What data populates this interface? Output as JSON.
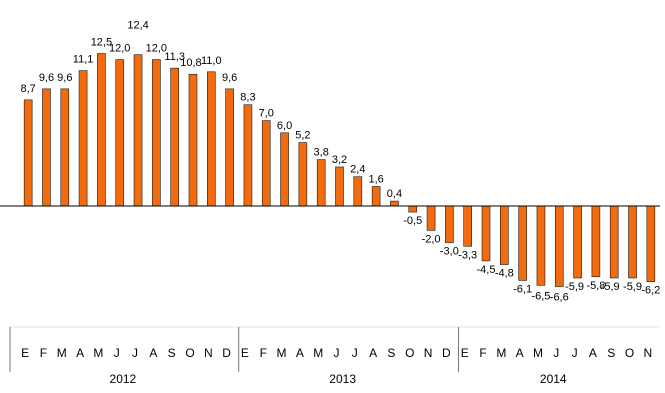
{
  "chart_data": {
    "type": "bar",
    "title": "",
    "xlabel": "",
    "ylabel": "",
    "ylim": [
      -7.5,
      13.5
    ],
    "grid": false,
    "legend": "none",
    "colors": {
      "bar_fill": "#F26B0F",
      "bar_stroke": "#1a1a1a",
      "axis": "#000000",
      "text": "#000000"
    },
    "year_labels": [
      "2012",
      "2013",
      "2014"
    ],
    "month_labels": [
      "E",
      "F",
      "M",
      "A",
      "M",
      "J",
      "J",
      "A",
      "S",
      "O",
      "N",
      "D",
      "E",
      "F",
      "M",
      "A",
      "M",
      "J",
      "J",
      "A",
      "S",
      "O",
      "N",
      "D",
      "E",
      "F",
      "M",
      "A",
      "M",
      "J",
      "J",
      "A",
      "S",
      "O",
      "N"
    ],
    "categories": [
      "E 2012",
      "F 2012",
      "M 2012",
      "A 2012",
      "M 2012",
      "J 2012",
      "J 2012",
      "A 2012",
      "S 2012",
      "O 2012",
      "N 2012",
      "D 2012",
      "E 2013",
      "F 2013",
      "M 2013",
      "A 2013",
      "M 2013",
      "J 2013",
      "J 2013",
      "A 2013",
      "S 2013",
      "O 2013",
      "N 2013",
      "D 2013",
      "E 2014",
      "F 2014",
      "M 2014",
      "A 2014",
      "M 2014",
      "J 2014",
      "J 2014",
      "A 2014",
      "S 2014",
      "O 2014",
      "N 2014"
    ],
    "values": [
      8.7,
      9.6,
      9.6,
      11.1,
      12.5,
      12.0,
      12.4,
      12.0,
      11.3,
      10.8,
      11.0,
      9.6,
      8.3,
      7.0,
      6.0,
      5.2,
      3.8,
      3.2,
      2.4,
      1.6,
      0.4,
      -0.5,
      -2.0,
      -3.0,
      -3.3,
      -4.5,
      -4.8,
      -6.1,
      -6.5,
      -6.6,
      -5.9,
      -5.8,
      -5.9,
      -5.9,
      -6.2
    ],
    "value_labels": [
      "8,7",
      "9,6",
      "9,6",
      "11,1",
      "12,5",
      "12,0",
      "12,4",
      "12,0",
      "11,3",
      "10,8",
      "11,0",
      "9,6",
      "8,3",
      "7,0",
      "6,0",
      "5,2",
      "3,8",
      "3,2",
      "2,4",
      "1,6",
      "0,4",
      "-0,5",
      "-2,0",
      "-3,0",
      "-3,3",
      "-4,5",
      "-4,8",
      "-6,1",
      "-6,5",
      "-6,6",
      "-5,9",
      "-5,8",
      "-5,9",
      "-5,9",
      "-6,2"
    ]
  }
}
